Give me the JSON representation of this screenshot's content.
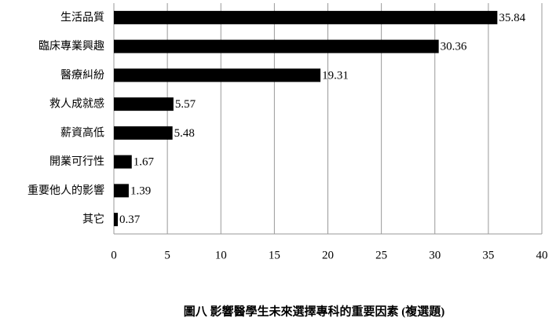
{
  "chart_data": {
    "type": "bar",
    "orientation": "horizontal",
    "title": "圖八 影響醫學生未來選擇專科的重要因素 (複選題)",
    "categories": [
      "生活品質",
      "臨床專業興趣",
      "醫療糾紛",
      "救人成就感",
      "薪資高低",
      "開業可行性",
      "重要他人的影響",
      "其它"
    ],
    "values": [
      35.84,
      30.36,
      19.31,
      5.57,
      5.48,
      1.67,
      1.39,
      0.37
    ],
    "color": "#000000",
    "xlim": [
      0,
      40
    ],
    "xticks": [
      0,
      5,
      10,
      15,
      20,
      25,
      30,
      35,
      40
    ],
    "grid": true
  }
}
